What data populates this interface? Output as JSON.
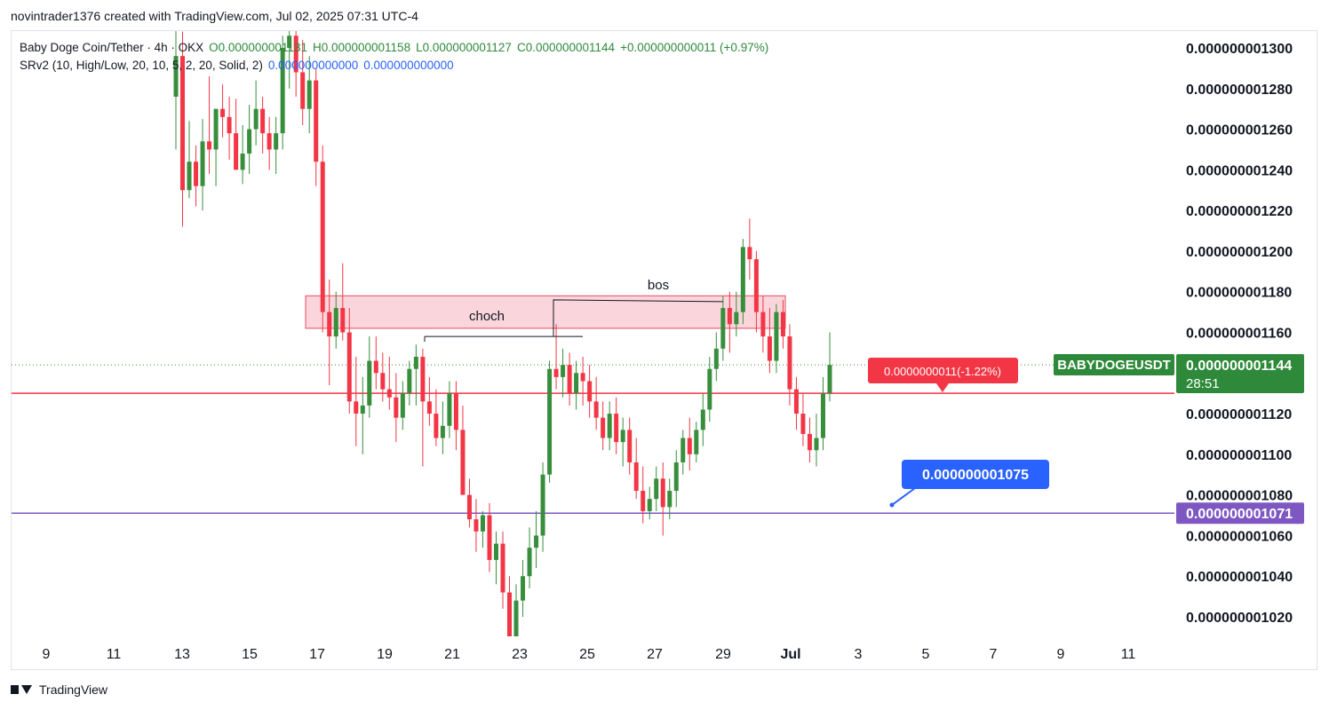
{
  "header": {
    "author_line": "novintrader1376 created with TradingView.com, Jul 02, 2025 07:31 UTC-4"
  },
  "legend": {
    "symbol": "Baby Doge Coin/Tether · 4h · OKX",
    "open": "O0.000000001131",
    "high": "H0.000000001158",
    "low": "L0.000000001127",
    "close": "C0.000000001144",
    "change": "+0.000000000011 (+0.97%)",
    "indicator_name": "SRv2 (10, High/Low, 20, 10, 5, 2, 20, Solid, 2)",
    "indicator_v1": "0.000000000000",
    "indicator_v2": "0.000000000000"
  },
  "footer": {
    "brand": "TradingView"
  },
  "colors": {
    "up": "#388e3c",
    "down": "#f23645",
    "resistance_line": "#f23645",
    "support_line": "#7e57c2",
    "zone_fill": "#f8c8d0",
    "zone_border": "#e84a5f",
    "price_tag": "#2e8a3a",
    "callout_blue": "#2962ff",
    "axis_text": "#131722"
  },
  "chart_data": {
    "type": "candlestick",
    "title": "Baby Doge Coin/Tether · 4h · OKX",
    "symbol_tag": "BABYDOGEUSDT",
    "y_range": [
      1.006e-09,
      1.314e-09
    ],
    "y_ticks": [
      "0.000000001300",
      "0.000000001280",
      "0.000000001260",
      "0.000000001240",
      "0.000000001220",
      "0.000000001200",
      "0.000000001180",
      "0.000000001160",
      "0.000000001120",
      "0.000000001100",
      "0.000000001080",
      "0.000000001060",
      "0.000000001040",
      "0.000000001020"
    ],
    "x_ticks": [
      "9",
      "11",
      "13",
      "15",
      "17",
      "19",
      "21",
      "23",
      "25",
      "27",
      "29",
      "Jul",
      "3",
      "5",
      "7",
      "9",
      "11"
    ],
    "last_price": "0.000000001144",
    "countdown": "28:51",
    "support_price": "0.000000001071",
    "resistance_level": "0.000000001130",
    "measure_label": "0.0000000011(-1.22%)",
    "callout_label": "0.000000001075",
    "zone": {
      "from_date": "Jun 17",
      "to_date": "Jul 1",
      "low": 1.162e-09,
      "high": 1.178e-09
    },
    "annotations": [
      {
        "text": "choch",
        "price": 1.158e-09
      },
      {
        "text": "bos",
        "price": 1.176e-09
      }
    ],
    "candles_ohlc": [
      [
        0,
        1276,
        1322,
        1250,
        1296
      ],
      [
        0,
        1296,
        1308,
        1212,
        1230
      ],
      [
        0,
        1230,
        1264,
        1226,
        1244
      ],
      [
        0,
        1244,
        1252,
        1222,
        1232
      ],
      [
        0,
        1232,
        1265,
        1220,
        1254
      ],
      [
        0,
        1254,
        1286,
        1238,
        1250
      ],
      [
        0,
        1250,
        1270,
        1232,
        1270
      ],
      [
        0,
        1270,
        1282,
        1256,
        1266
      ],
      [
        0,
        1266,
        1276,
        1245,
        1258
      ],
      [
        0,
        1258,
        1275,
        1248,
        1240
      ],
      [
        0,
        1240,
        1262,
        1233,
        1248
      ],
      [
        0,
        1248,
        1272,
        1238,
        1260
      ],
      [
        0,
        1260,
        1284,
        1252,
        1270
      ],
      [
        0,
        1270,
        1276,
        1248,
        1258
      ],
      [
        0,
        1258,
        1266,
        1240,
        1250
      ],
      [
        0,
        1250,
        1266,
        1238,
        1258
      ],
      [
        0,
        1258,
        1306,
        1250,
        1300
      ],
      [
        0,
        1300,
        1314,
        1280,
        1306
      ],
      [
        0,
        1306,
        1314,
        1276,
        1288
      ],
      [
        0,
        1288,
        1304,
        1262,
        1270
      ],
      [
        0,
        1270,
        1296,
        1258,
        1284
      ],
      [
        0,
        1284,
        1290,
        1232,
        1244
      ],
      [
        0,
        1244,
        1252,
        1160,
        1170
      ],
      [
        0,
        1170,
        1186,
        1134,
        1158
      ],
      [
        0,
        1158,
        1180,
        1152,
        1172
      ],
      [
        0,
        1172,
        1194,
        1156,
        1160
      ],
      [
        0,
        1160,
        1172,
        1120,
        1126
      ],
      [
        0,
        1126,
        1148,
        1104,
        1120
      ],
      [
        0,
        1120,
        1138,
        1100,
        1124
      ],
      [
        0,
        1124,
        1158,
        1118,
        1146
      ],
      [
        0,
        1146,
        1158,
        1132,
        1140
      ],
      [
        0,
        1140,
        1150,
        1126,
        1132
      ],
      [
        0,
        1132,
        1148,
        1122,
        1128
      ],
      [
        0,
        1128,
        1140,
        1106,
        1118
      ],
      [
        0,
        1118,
        1136,
        1112,
        1130
      ],
      [
        0,
        1130,
        1146,
        1124,
        1142
      ],
      [
        0,
        1142,
        1154,
        1124,
        1148
      ],
      [
        0,
        1148,
        1152,
        1094,
        1126
      ],
      [
        0,
        1126,
        1138,
        1114,
        1120
      ],
      [
        0,
        1120,
        1132,
        1104,
        1108
      ],
      [
        0,
        1108,
        1126,
        1100,
        1114
      ],
      [
        0,
        1114,
        1136,
        1108,
        1130
      ],
      [
        0,
        1130,
        1136,
        1102,
        1112
      ],
      [
        0,
        1112,
        1124,
        1082,
        1080
      ],
      [
        0,
        1080,
        1088,
        1064,
        1068
      ],
      [
        0,
        1068,
        1078,
        1052,
        1062
      ],
      [
        0,
        1062,
        1072,
        1054,
        1070
      ],
      [
        0,
        1070,
        1076,
        1042,
        1048
      ],
      [
        0,
        1048,
        1062,
        1036,
        1056
      ],
      [
        0,
        1056,
        1062,
        1024,
        1032
      ],
      [
        0,
        1032,
        1040,
        1002,
        1010
      ],
      [
        0,
        1010,
        1036,
        1006,
        1028
      ],
      [
        0,
        1028,
        1048,
        1020,
        1040
      ],
      [
        0,
        1040,
        1064,
        1034,
        1054
      ],
      [
        0,
        1054,
        1072,
        1044,
        1060
      ],
      [
        0,
        1060,
        1096,
        1052,
        1090
      ],
      [
        0,
        1090,
        1146,
        1086,
        1142
      ],
      [
        0,
        1142,
        1164,
        1132,
        1138
      ],
      [
        0,
        1138,
        1152,
        1128,
        1144
      ],
      [
        0,
        1144,
        1150,
        1124,
        1130
      ],
      [
        0,
        1130,
        1146,
        1122,
        1140
      ],
      [
        0,
        1140,
        1148,
        1124,
        1136
      ],
      [
        0,
        1136,
        1144,
        1118,
        1126
      ],
      [
        0,
        1126,
        1138,
        1112,
        1118
      ],
      [
        0,
        1118,
        1126,
        1102,
        1108
      ],
      [
        0,
        1108,
        1126,
        1102,
        1120
      ],
      [
        0,
        1120,
        1128,
        1100,
        1106
      ],
      [
        0,
        1106,
        1118,
        1094,
        1112
      ],
      [
        0,
        1112,
        1118,
        1090,
        1096
      ],
      [
        0,
        1096,
        1108,
        1078,
        1082
      ],
      [
        0,
        1082,
        1094,
        1066,
        1072
      ],
      [
        0,
        1072,
        1084,
        1068,
        1078
      ],
      [
        0,
        1078,
        1094,
        1072,
        1088
      ],
      [
        0,
        1088,
        1096,
        1060,
        1074
      ],
      [
        0,
        1074,
        1088,
        1068,
        1082
      ],
      [
        0,
        1082,
        1102,
        1074,
        1096
      ],
      [
        0,
        1096,
        1112,
        1090,
        1108
      ],
      [
        0,
        1108,
        1118,
        1092,
        1100
      ],
      [
        0,
        1100,
        1116,
        1096,
        1112
      ],
      [
        0,
        1112,
        1130,
        1104,
        1122
      ],
      [
        0,
        1122,
        1148,
        1116,
        1142
      ],
      [
        0,
        1142,
        1160,
        1136,
        1152
      ],
      [
        0,
        1152,
        1178,
        1146,
        1172
      ],
      [
        0,
        1172,
        1180,
        1150,
        1164
      ],
      [
        0,
        1164,
        1180,
        1158,
        1170
      ],
      [
        0,
        1170,
        1206,
        1164,
        1202
      ],
      [
        0,
        1202,
        1216,
        1186,
        1196
      ],
      [
        0,
        1196,
        1200,
        1160,
        1170
      ],
      [
        0,
        1170,
        1178,
        1150,
        1158
      ],
      [
        0,
        1158,
        1172,
        1140,
        1146
      ],
      [
        0,
        1146,
        1174,
        1140,
        1170
      ],
      [
        0,
        1170,
        1176,
        1152,
        1158
      ],
      [
        0,
        1158,
        1164,
        1124,
        1132
      ],
      [
        0,
        1132,
        1138,
        1112,
        1120
      ],
      [
        0,
        1120,
        1130,
        1104,
        1110
      ],
      [
        0,
        1110,
        1118,
        1096,
        1102
      ],
      [
        0,
        1102,
        1120,
        1094,
        1108
      ],
      [
        0,
        1108,
        1138,
        1102,
        1130
      ],
      [
        0,
        1130,
        1160,
        1126,
        1144
      ]
    ]
  }
}
